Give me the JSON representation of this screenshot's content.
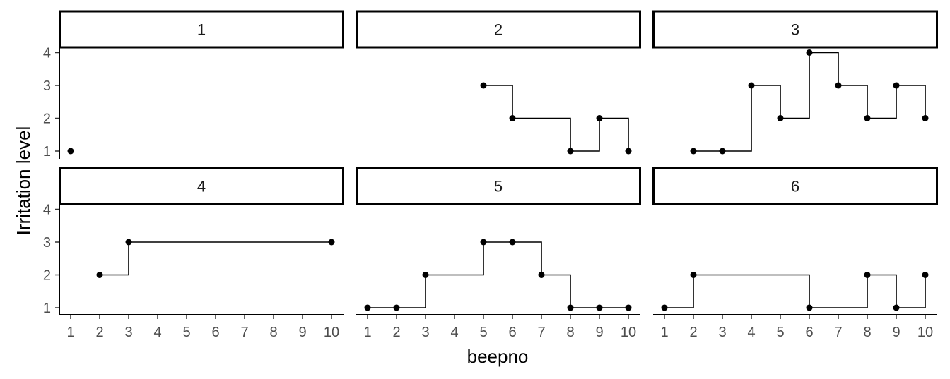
{
  "chart_data": {
    "type": "line",
    "step": true,
    "facets": true,
    "xlabel": "beepno",
    "ylabel": "Irritation level",
    "x_ticks": [
      1,
      2,
      3,
      4,
      5,
      6,
      7,
      8,
      9,
      10
    ],
    "y_ticks": [
      1,
      2,
      3,
      4
    ],
    "xlim": [
      1,
      10
    ],
    "ylim": [
      1,
      4
    ],
    "panels": [
      {
        "label": "1",
        "x": [
          1
        ],
        "y": [
          1
        ]
      },
      {
        "label": "2",
        "x": [
          5,
          6,
          8,
          9,
          10
        ],
        "y": [
          3,
          2,
          1,
          2,
          1
        ]
      },
      {
        "label": "3",
        "x": [
          2,
          3,
          4,
          5,
          6,
          7,
          8,
          9,
          10
        ],
        "y": [
          1,
          1,
          3,
          2,
          4,
          3,
          2,
          3,
          2
        ]
      },
      {
        "label": "4",
        "x": [
          2,
          3,
          10
        ],
        "y": [
          2,
          3,
          3
        ]
      },
      {
        "label": "5",
        "x": [
          1,
          2,
          3,
          5,
          6,
          7,
          8,
          9,
          10
        ],
        "y": [
          1,
          1,
          2,
          3,
          3,
          2,
          1,
          1,
          1
        ]
      },
      {
        "label": "6",
        "x": [
          1,
          2,
          6,
          8,
          9,
          10
        ],
        "y": [
          1,
          2,
          1,
          2,
          1,
          2
        ]
      }
    ],
    "colors": {
      "line": "#000000",
      "point": "#000000",
      "strip_fill": "#ffffff",
      "strip_border": "#000000",
      "tick_text": "#4d4d4d"
    }
  }
}
